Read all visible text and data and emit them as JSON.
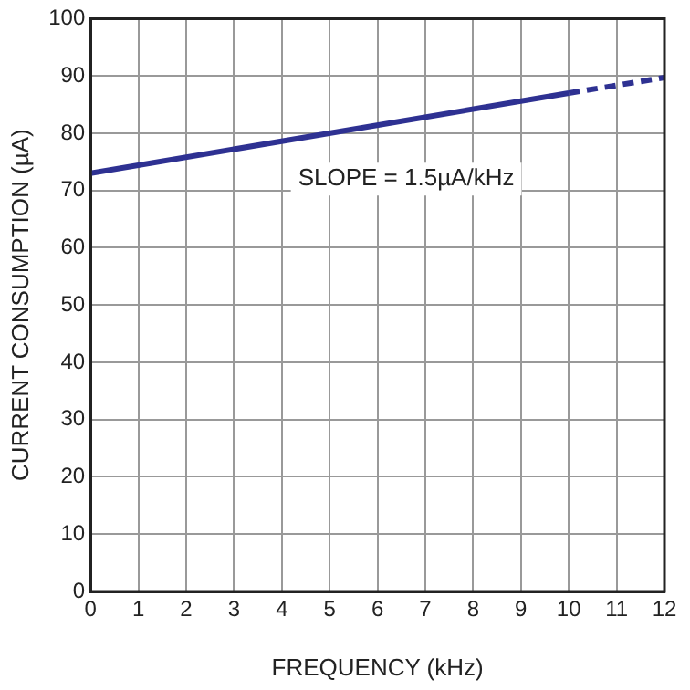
{
  "chart_data": {
    "type": "line",
    "xlabel": "FREQUENCY (kHz)",
    "ylabel": "CURRENT CONSUMPTION (µA)",
    "xlim": [
      0,
      12
    ],
    "xticks": [
      0,
      1,
      2,
      3,
      4,
      5,
      6,
      7,
      8,
      9,
      10,
      11,
      12
    ],
    "ylim": [
      0,
      100
    ],
    "yticks": [
      0,
      10,
      20,
      30,
      40,
      50,
      60,
      70,
      80,
      90,
      100
    ],
    "grid": true,
    "legend": false,
    "marker": "none",
    "series": [
      {
        "color": "#2e3192",
        "x": [
          0,
          10
        ],
        "values": [
          73,
          87
        ],
        "line_style": "solid"
      },
      {
        "color": "#2e3192",
        "x": [
          10,
          12
        ],
        "values": [
          87,
          89.7
        ],
        "line_style": "dashed"
      }
    ],
    "annotations": [
      "SLOPE = 1.5µA/kHz"
    ]
  }
}
